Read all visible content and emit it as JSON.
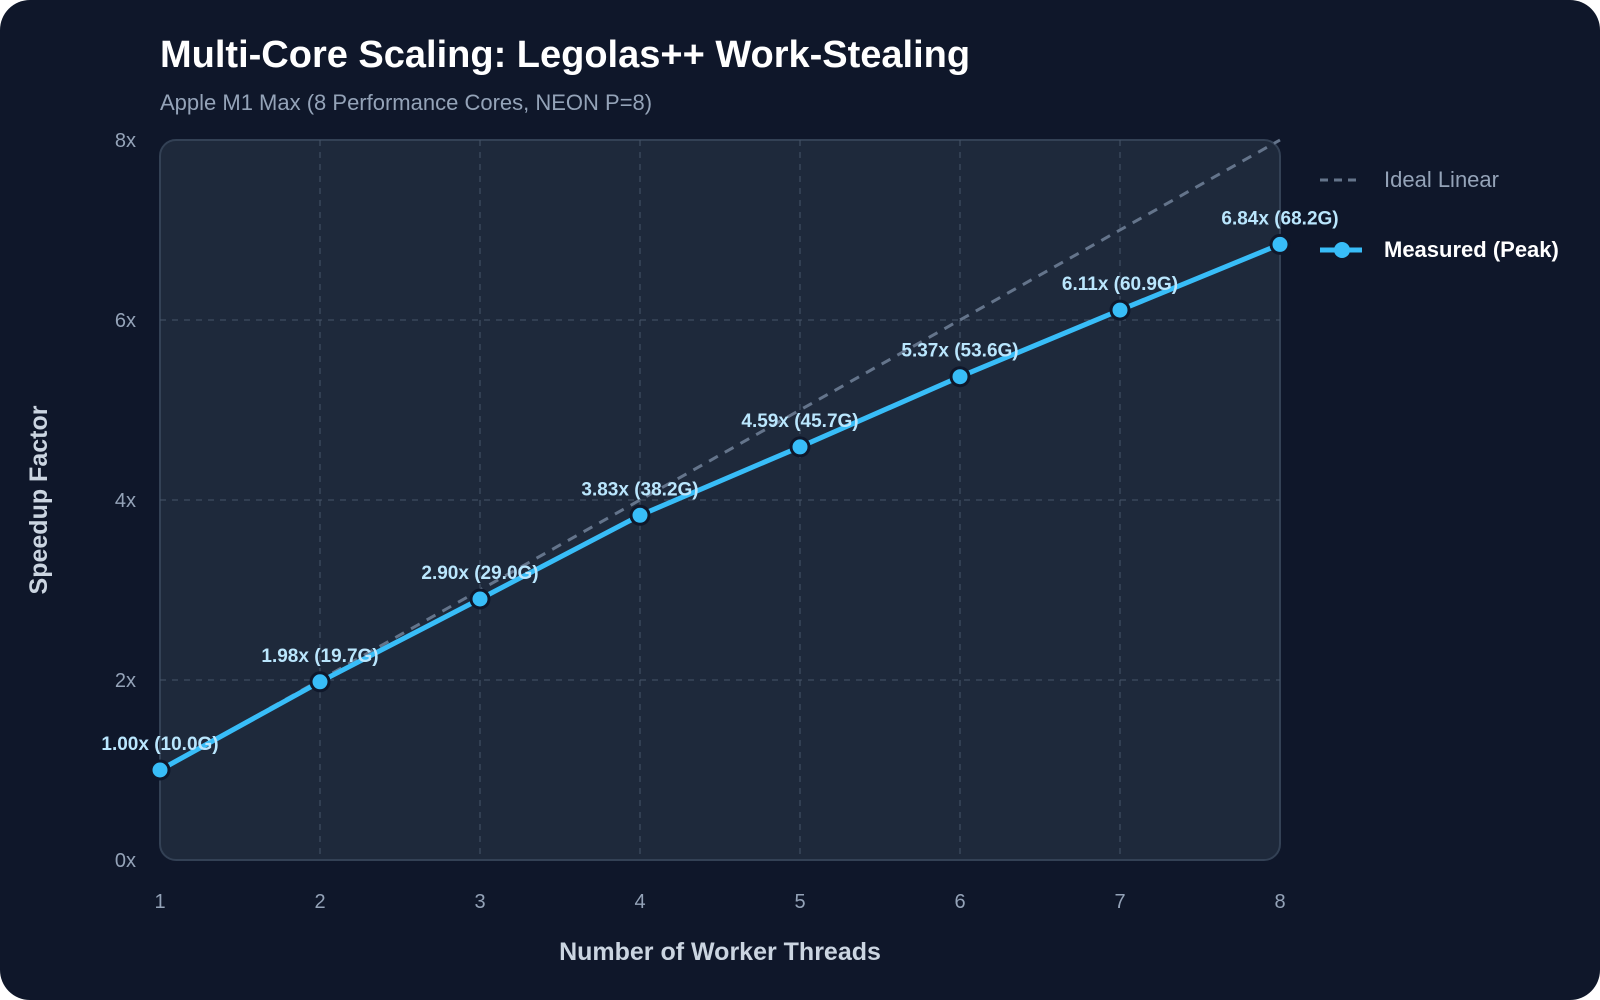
{
  "title": "Multi-Core Scaling: Legolas++ Work-Stealing",
  "subtitle": "Apple M1 Max (8 Performance Cores, NEON P=8)",
  "colors": {
    "background": "#0f172a",
    "plot_area": "#1e293b",
    "measured": "#38bdf8",
    "ideal": "#64748b",
    "data_label": "#bae6fd"
  },
  "chart_data": {
    "type": "line",
    "xlabel": "Number of Worker Threads",
    "ylabel": "Speedup Factor",
    "x": [
      1,
      2,
      3,
      4,
      5,
      6,
      7,
      8
    ],
    "xlim": [
      1,
      8
    ],
    "ylim": [
      0,
      8
    ],
    "y_ticks": [
      "0x",
      "2x",
      "4x",
      "6x",
      "8x"
    ],
    "x_ticks": [
      "1",
      "2",
      "3",
      "4",
      "5",
      "6",
      "7",
      "8"
    ],
    "grid": true,
    "legend_position": "right",
    "series": [
      {
        "name": "Ideal Linear",
        "style": "dashed",
        "values": [
          1,
          2,
          3,
          4,
          5,
          6,
          7,
          8
        ]
      },
      {
        "name": "Measured (Peak)",
        "style": "solid-markers",
        "values": [
          1.0,
          1.98,
          2.9,
          3.83,
          4.59,
          5.37,
          6.11,
          6.84
        ],
        "labels": [
          "1.00x (10.0G)",
          "1.98x (19.7G)",
          "2.90x (29.0G)",
          "3.83x (38.2G)",
          "4.59x (45.7G)",
          "5.37x (53.6G)",
          "6.11x (60.9G)",
          "6.84x (68.2G)"
        ]
      }
    ]
  }
}
